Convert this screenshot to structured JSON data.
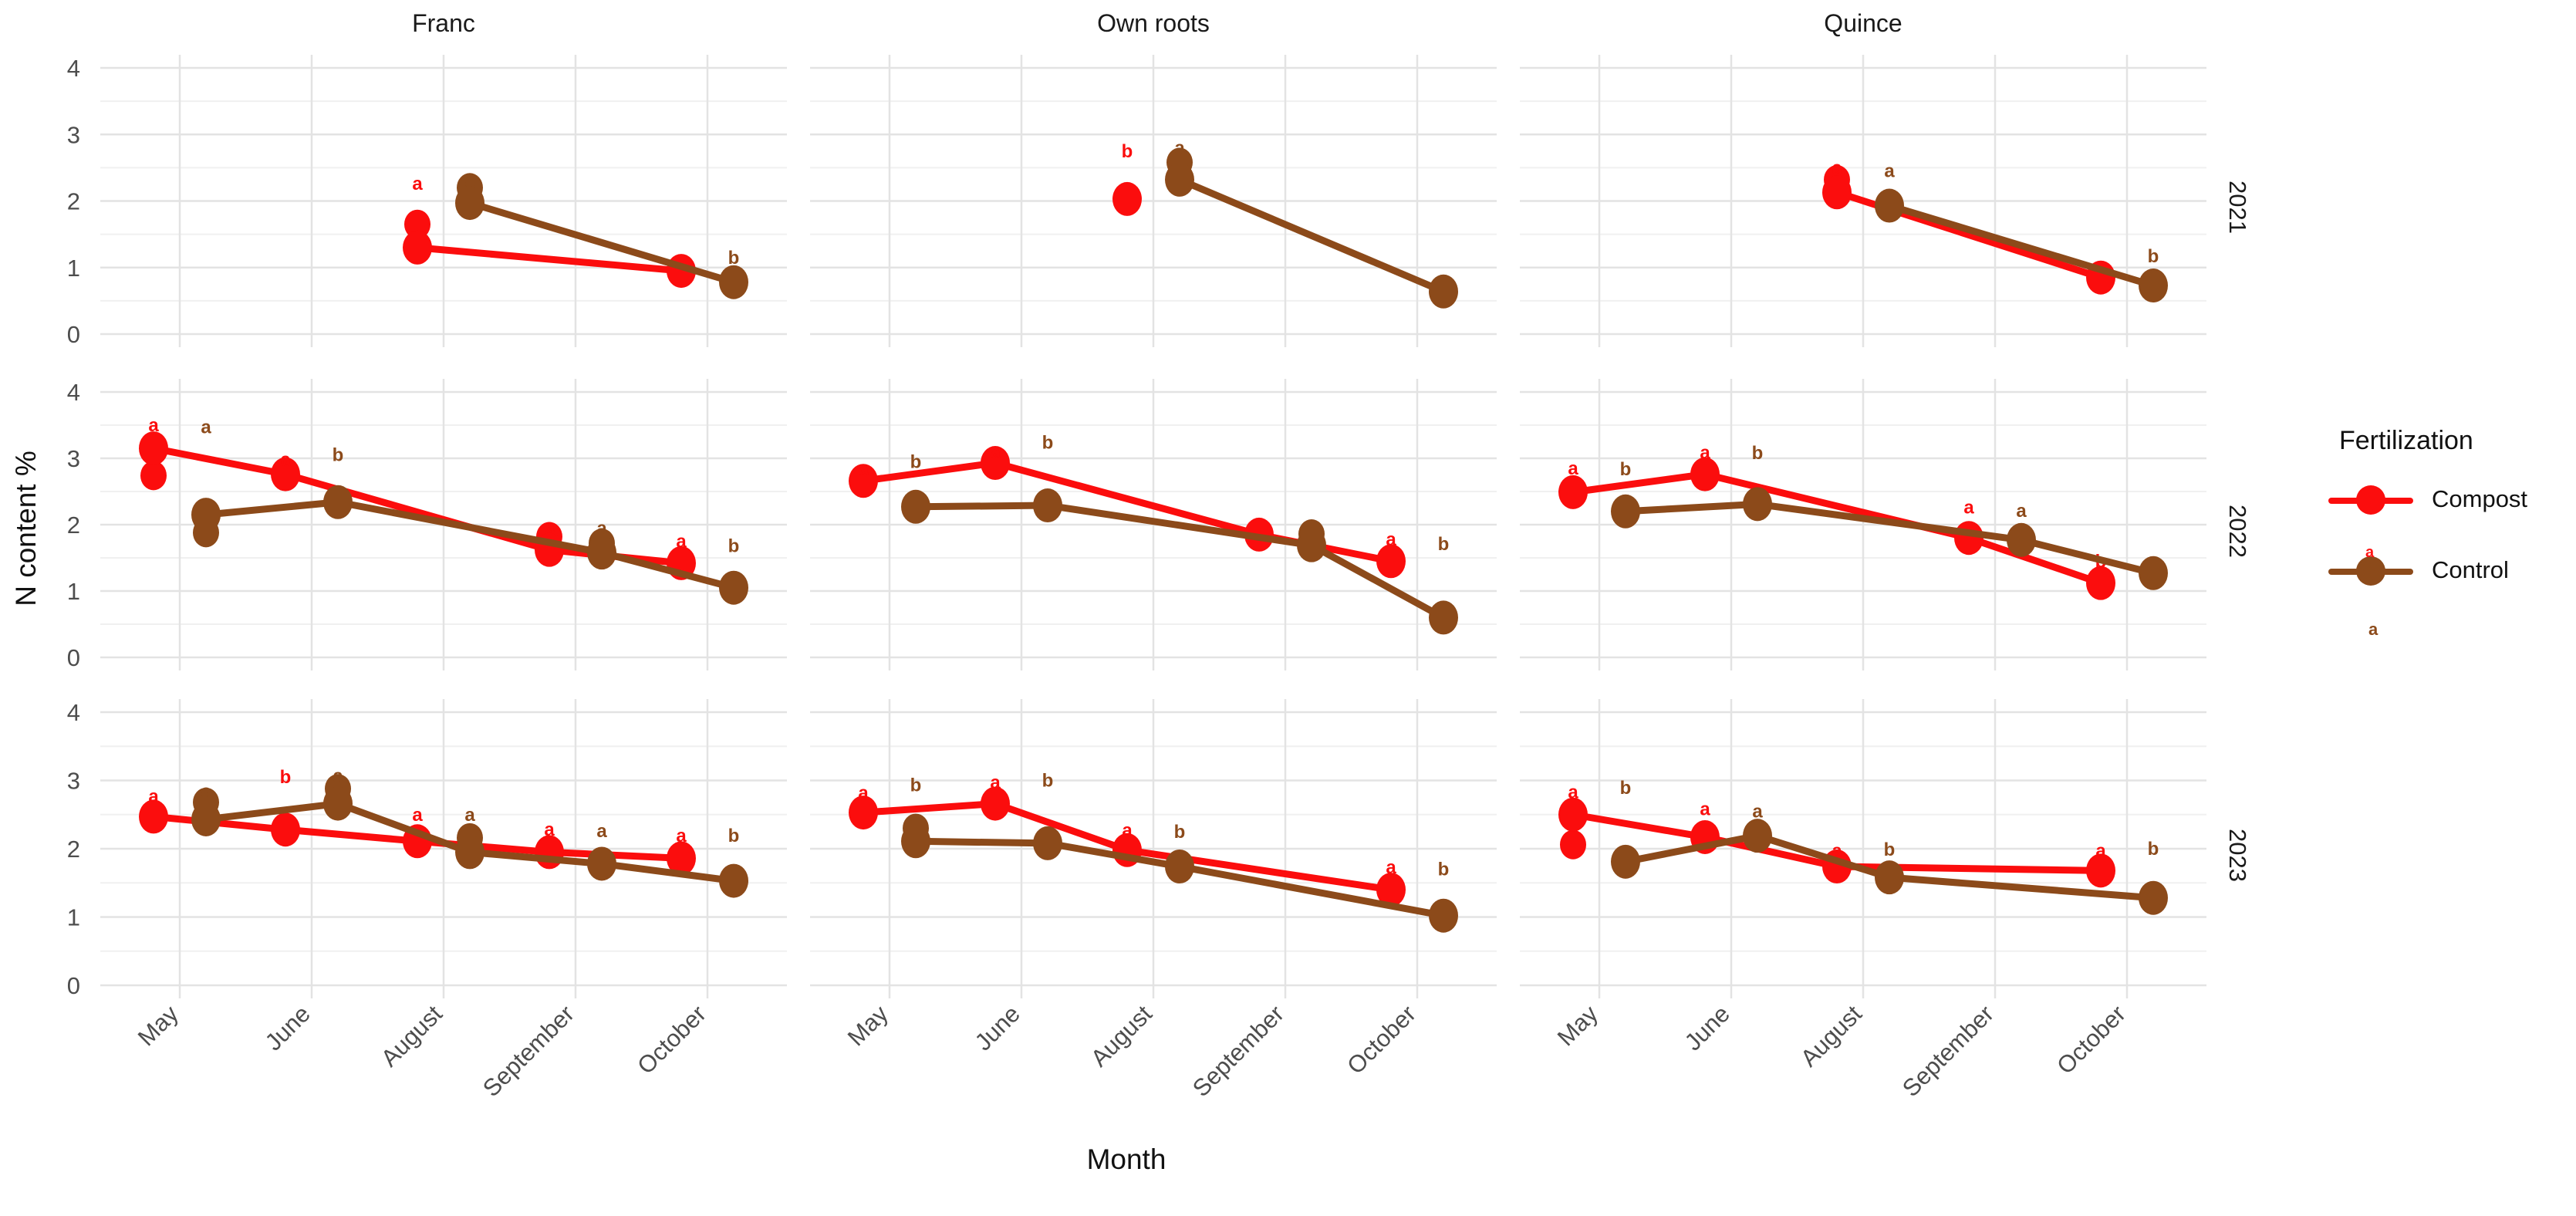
{
  "chart_data": {
    "type": "line",
    "title": "",
    "xlabel": "Month",
    "ylabel": "N content %",
    "facet_columns": [
      "Franc",
      "Own roots",
      "Quince"
    ],
    "facet_rows": [
      "2021",
      "2022",
      "2023"
    ],
    "months": [
      "May",
      "June",
      "August",
      "September",
      "October"
    ],
    "y_ticks": [
      "4",
      "3",
      "2",
      "1",
      "0"
    ],
    "y_tick_values": [
      4,
      3,
      2,
      1,
      0
    ],
    "ylim": [
      0,
      4
    ],
    "grid": "on",
    "legend_position": "right",
    "series_meta": [
      {
        "name": "Compost",
        "color": "#fb0d0d"
      },
      {
        "name": "Control",
        "color": "#8c4a1a"
      }
    ],
    "cells": [
      {
        "col": 0,
        "row": 0,
        "Compost": [
          {
            "m": 2,
            "y": 1.3,
            "y2": 1.65,
            "lt": "a",
            "ly": 2.26
          },
          {
            "m": 4,
            "y": 0.95
          }
        ],
        "Control": [
          {
            "m": 2,
            "y": 1.97,
            "y2": 2.2,
            "lt": "a",
            "ly": 2.3
          },
          {
            "m": 4,
            "y": 0.78,
            "lt": "b",
            "ly": 1.15
          }
        ]
      },
      {
        "col": 1,
        "row": 0,
        "Compost": [
          {
            "m": 2,
            "y": 2.03,
            "lt": "b",
            "ly": 2.75
          }
        ],
        "Control": [
          {
            "m": 2,
            "y": 2.32,
            "y2": 2.58,
            "lt": "a",
            "ly": 2.8
          },
          {
            "m": 4,
            "y": 0.64
          }
        ]
      },
      {
        "col": 2,
        "row": 0,
        "Compost": [
          {
            "m": 2,
            "y": 2.13,
            "y2": 2.32,
            "lt": "a",
            "ly": 2.5
          },
          {
            "m": 4,
            "y": 0.85
          }
        ],
        "Control": [
          {
            "m": 2,
            "y": 1.93,
            "lt": "a",
            "ly": 2.45
          },
          {
            "m": 4,
            "y": 0.73,
            "lt": "b",
            "ly": 1.17
          }
        ]
      },
      {
        "col": 0,
        "row": 1,
        "Compost": [
          {
            "m": 0,
            "y": 3.15,
            "y2": 2.74,
            "lt": "a",
            "ly": 3.5
          },
          {
            "m": 1,
            "y": 2.76,
            "lt": "a",
            "ly": 2.98
          },
          {
            "m": 3,
            "y": 1.62,
            "y2": 1.82,
            "lt": "a",
            "ly": 1.98
          },
          {
            "m": 4,
            "y": 1.42,
            "lt": "a",
            "ly": 1.75
          }
        ],
        "Control": [
          {
            "m": 0,
            "y": 2.15,
            "y2": 1.88,
            "lt": "a",
            "ly": 3.47
          },
          {
            "m": 1,
            "y": 2.34,
            "lt": "b",
            "ly": 3.05
          },
          {
            "m": 3,
            "y": 1.58,
            "y2": 1.72,
            "lt": "a",
            "ly": 1.95
          },
          {
            "m": 4,
            "y": 1.05,
            "lt": "b",
            "ly": 1.68
          }
        ]
      },
      {
        "col": 1,
        "row": 1,
        "Compost": [
          {
            "m": 0,
            "y": 2.66,
            "lt": "a",
            "ly": 2.85
          },
          {
            "m": 1,
            "y": 2.93,
            "lt": "a",
            "ly": 3.1
          },
          {
            "m": 3,
            "y": 1.85
          },
          {
            "m": 4,
            "y": 1.45,
            "lt": "a",
            "ly": 1.78
          }
        ],
        "Control": [
          {
            "m": 0,
            "y": 2.27,
            "lt": "b",
            "ly": 2.95
          },
          {
            "m": 1,
            "y": 2.29,
            "lt": "b",
            "ly": 3.24
          },
          {
            "m": 3,
            "y": 1.69,
            "y2": 1.86
          },
          {
            "m": 4,
            "y": 0.6,
            "lt": "b",
            "ly": 1.71
          }
        ]
      },
      {
        "col": 2,
        "row": 1,
        "Compost": [
          {
            "m": 0,
            "y": 2.49,
            "lt": "a",
            "ly": 2.85
          },
          {
            "m": 1,
            "y": 2.76,
            "lt": "a",
            "ly": 3.09
          },
          {
            "m": 3,
            "y": 1.8,
            "lt": "a",
            "ly": 2.26
          },
          {
            "m": 4,
            "y": 1.12,
            "lt": "b",
            "ly": 1.45
          }
        ],
        "Control": [
          {
            "m": 0,
            "y": 2.2,
            "lt": "b",
            "ly": 2.84
          },
          {
            "m": 1,
            "y": 2.31,
            "lt": "b",
            "ly": 3.08
          },
          {
            "m": 3,
            "y": 1.77,
            "lt": "a",
            "ly": 2.21
          },
          {
            "m": 4,
            "y": 1.27
          }
        ]
      },
      {
        "col": 0,
        "row": 2,
        "Compost": [
          {
            "m": 0,
            "y": 2.47,
            "lt": "a",
            "ly": 2.77
          },
          {
            "m": 1,
            "y": 2.28,
            "lt": "b",
            "ly": 3.05
          },
          {
            "m": 2,
            "y": 2.11,
            "lt": "a",
            "ly": 2.5
          },
          {
            "m": 3,
            "y": 1.95,
            "lt": "a",
            "ly": 2.28
          },
          {
            "m": 4,
            "y": 1.86,
            "lt": "a",
            "ly": 2.19
          }
        ],
        "Control": [
          {
            "m": 0,
            "y": 2.43,
            "y2": 2.68,
            "lt": "a",
            "ly": 2.84
          },
          {
            "m": 1,
            "y": 2.66,
            "y2": 2.88,
            "lt": "a",
            "ly": 3.07
          },
          {
            "m": 2,
            "y": 1.95,
            "y2": 2.16,
            "lt": "a",
            "ly": 2.5
          },
          {
            "m": 3,
            "y": 1.78,
            "lt": "a",
            "ly": 2.26
          },
          {
            "m": 4,
            "y": 1.53,
            "lt": "b",
            "ly": 2.19
          }
        ]
      },
      {
        "col": 1,
        "row": 2,
        "Compost": [
          {
            "m": 0,
            "y": 2.53,
            "lt": "a",
            "ly": 2.82
          },
          {
            "m": 1,
            "y": 2.66,
            "lt": "a",
            "ly": 2.97
          },
          {
            "m": 2,
            "y": 1.98,
            "lt": "a",
            "ly": 2.27
          },
          {
            "m": 4,
            "y": 1.4,
            "lt": "a",
            "ly": 1.73
          }
        ],
        "Control": [
          {
            "m": 0,
            "y": 2.11,
            "y2": 2.3,
            "lt": "b",
            "ly": 2.93
          },
          {
            "m": 1,
            "y": 2.08,
            "lt": "b",
            "ly": 3.0
          },
          {
            "m": 2,
            "y": 1.74,
            "lt": "b",
            "ly": 2.25
          },
          {
            "m": 4,
            "y": 1.02,
            "lt": "b",
            "ly": 1.7
          }
        ]
      },
      {
        "col": 2,
        "row": 2,
        "Compost": [
          {
            "m": 0,
            "y": 2.5,
            "y2": 2.06,
            "lt": "a",
            "ly": 2.83
          },
          {
            "m": 1,
            "y": 2.17,
            "lt": "a",
            "ly": 2.58
          },
          {
            "m": 2,
            "y": 1.74,
            "lt": "a",
            "ly": 1.97
          },
          {
            "m": 4,
            "y": 1.68,
            "lt": "a",
            "ly": 1.97
          }
        ],
        "Control": [
          {
            "m": 0,
            "y": 1.81,
            "lt": "b",
            "ly": 2.89
          },
          {
            "m": 1,
            "y": 2.19,
            "lt": "a",
            "ly": 2.55
          },
          {
            "m": 2,
            "y": 1.58,
            "lt": "b",
            "ly": 1.99
          },
          {
            "m": 4,
            "y": 1.28,
            "lt": "b",
            "ly": 2.0
          }
        ]
      }
    ]
  },
  "legend": {
    "title": "Fertilization",
    "items": [
      {
        "label": "Compost",
        "color": "#fb0d0d"
      },
      {
        "label": "Control",
        "color": "#8c4a1a"
      }
    ],
    "extra_glyph": "a"
  },
  "axis": {
    "x_title": "Month",
    "y_title": "N content %"
  },
  "colors": {
    "compost": "#fb0d0d",
    "control": "#8c4a1a",
    "grid_major": "#e3e3e3",
    "grid_minor": "#f0f0f0",
    "tick_text": "#4d4d4d",
    "strip_text": "#1a1a1a"
  }
}
